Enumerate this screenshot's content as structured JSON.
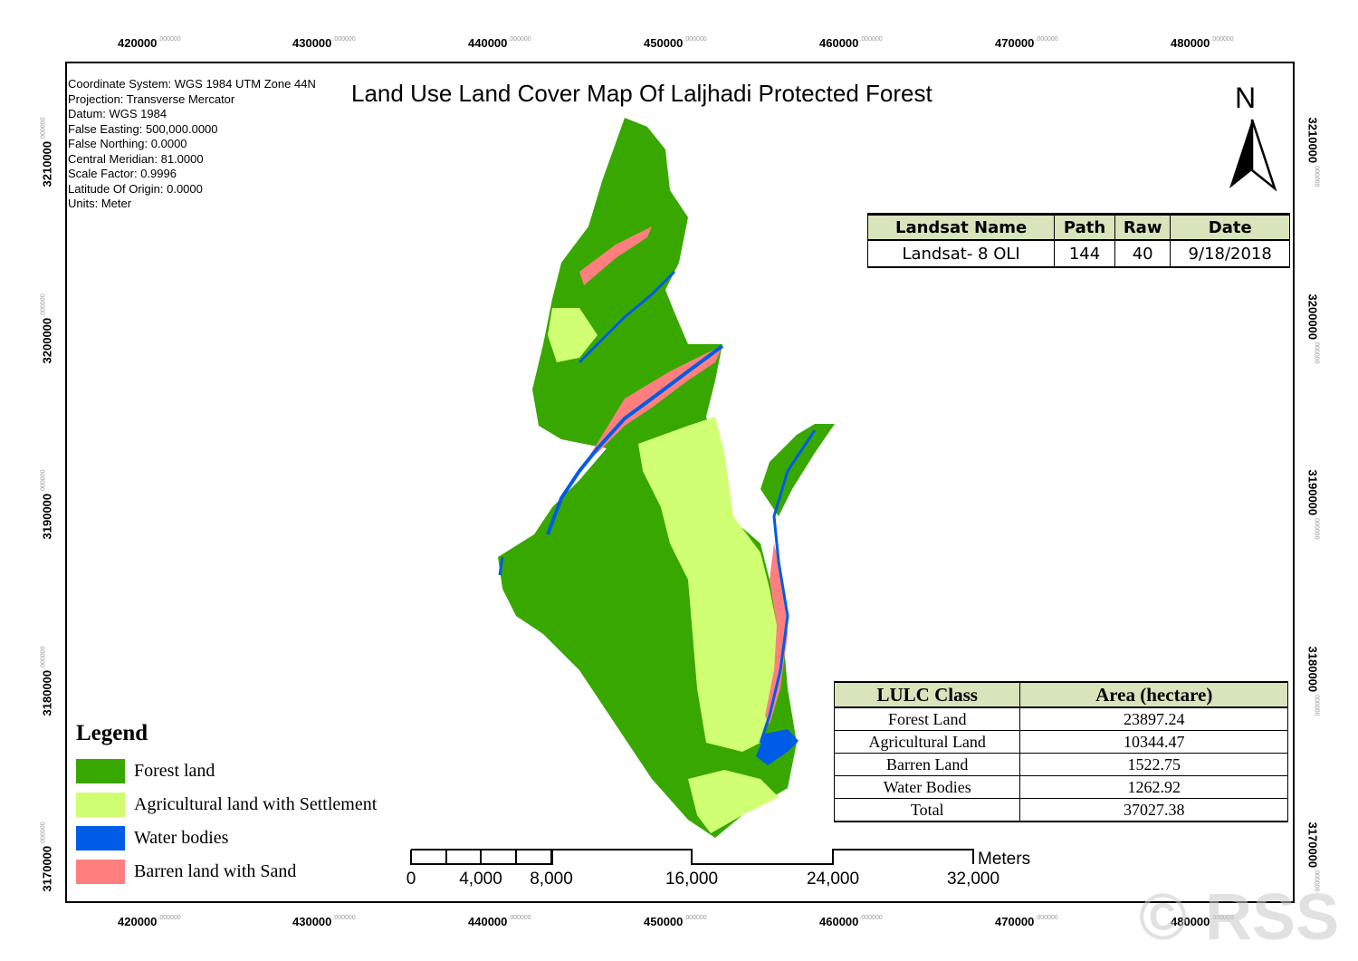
{
  "title": "Land Use Land Cover Map Of Laljhadi Protected Forest",
  "coordinate_info": [
    "Coordinate System: WGS 1984 UTM Zone 44N",
    "Projection: Transverse Mercator",
    "Datum: WGS 1984",
    "False Easting: 500,000.0000",
    "False Northing: 0.0000",
    "Central Meridian: 81.0000",
    "Scale Factor: 0.9996",
    "Latitude Of Origin: 0.0000",
    "Units: Meter"
  ],
  "north_label": "N",
  "grid": {
    "x_labels": [
      "420000",
      "430000",
      "440000",
      "450000",
      "460000",
      "470000",
      "480000"
    ],
    "y_labels": [
      "3210000",
      "3200000",
      "3190000",
      "3180000",
      "3170000"
    ],
    "decimal_suffix": ".000000"
  },
  "landsat_table": {
    "headers": [
      "Landsat Name",
      "Path",
      "Raw",
      "Date"
    ],
    "row": [
      "Landsat- 8 OLI",
      "144",
      "40",
      "9/18/2018"
    ]
  },
  "lulc_table": {
    "headers": [
      "LULC Class",
      "Area (hectare)"
    ],
    "rows": [
      [
        "Forest Land",
        "23897.24"
      ],
      [
        "Agricultural Land",
        "10344.47"
      ],
      [
        "Barren Land",
        "1522.75"
      ],
      [
        "Water Bodies",
        "1262.92"
      ],
      [
        "Total",
        "37027.38"
      ]
    ]
  },
  "legend": {
    "title": "Legend",
    "items": [
      {
        "label": "Forest land",
        "color": "#38a800"
      },
      {
        "label": "Agricultural land with Settlement",
        "color": "#d1ff73"
      },
      {
        "label": "Water bodies",
        "color": "#005ce6"
      },
      {
        "label": "Barren land with Sand",
        "color": "#ff7f7f"
      }
    ]
  },
  "scale_bar": {
    "unit": "Meters",
    "ticks": [
      "0",
      "4,000",
      "8,000",
      "16,000",
      "24,000",
      "32,000"
    ]
  },
  "watermark": "© RSS"
}
